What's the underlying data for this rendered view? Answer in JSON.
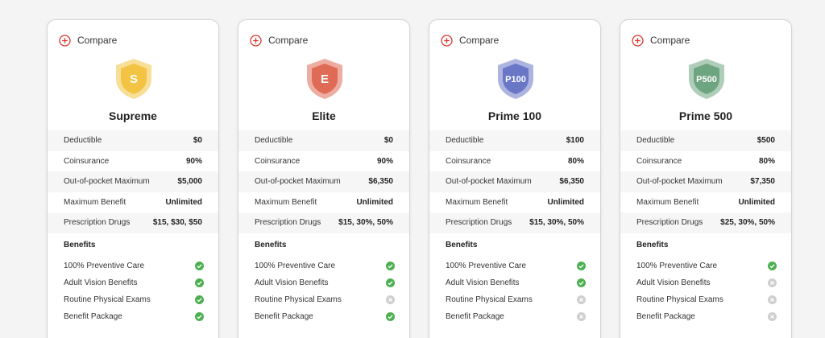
{
  "plans": [
    {
      "compare_label": "Compare",
      "badge": "S",
      "color": "#f3c443",
      "name": "Supreme",
      "rows": [
        {
          "label": "Deductible",
          "value": "$0"
        },
        {
          "label": "Coinsurance",
          "value": "90%"
        },
        {
          "label": "Out-of-pocket Maximum",
          "value": "$5,000"
        },
        {
          "label": "Maximum Benefit",
          "value": "Unlimited"
        },
        {
          "label": "Prescription Drugs",
          "value": "$15, $30, $50"
        }
      ],
      "benefits_title": "Benefits",
      "benefits": [
        {
          "label": "100% Preventive Care",
          "included": true
        },
        {
          "label": "Adult Vision Benefits",
          "included": true
        },
        {
          "label": "Routine Physical Exams",
          "included": true
        },
        {
          "label": "Benefit Package",
          "included": true
        }
      ]
    },
    {
      "compare_label": "Compare",
      "badge": "E",
      "color": "#df6a55",
      "name": "Elite",
      "rows": [
        {
          "label": "Deductible",
          "value": "$0"
        },
        {
          "label": "Coinsurance",
          "value": "90%"
        },
        {
          "label": "Out-of-pocket Maximum",
          "value": "$6,350"
        },
        {
          "label": "Maximum Benefit",
          "value": "Unlimited"
        },
        {
          "label": "Prescription Drugs",
          "value": "$15, 30%, 50%"
        }
      ],
      "benefits_title": "Benefits",
      "benefits": [
        {
          "label": "100% Preventive Care",
          "included": true
        },
        {
          "label": "Adult Vision Benefits",
          "included": true
        },
        {
          "label": "Routine Physical Exams",
          "included": false
        },
        {
          "label": "Benefit Package",
          "included": true
        }
      ]
    },
    {
      "compare_label": "Compare",
      "badge": "P100",
      "color": "#6a77c6",
      "name": "Prime 100",
      "rows": [
        {
          "label": "Deductible",
          "value": "$100"
        },
        {
          "label": "Coinsurance",
          "value": "80%"
        },
        {
          "label": "Out-of-pocket Maximum",
          "value": "$6,350"
        },
        {
          "label": "Maximum Benefit",
          "value": "Unlimited"
        },
        {
          "label": "Prescription Drugs",
          "value": "$15, 30%, 50%"
        }
      ],
      "benefits_title": "Benefits",
      "benefits": [
        {
          "label": "100% Preventive Care",
          "included": true
        },
        {
          "label": "Adult Vision Benefits",
          "included": true
        },
        {
          "label": "Routine Physical Exams",
          "included": false
        },
        {
          "label": "Benefit Package",
          "included": false
        }
      ]
    },
    {
      "compare_label": "Compare",
      "badge": "P500",
      "color": "#6ea581",
      "name": "Prime 500",
      "rows": [
        {
          "label": "Deductible",
          "value": "$500"
        },
        {
          "label": "Coinsurance",
          "value": "80%"
        },
        {
          "label": "Out-of-pocket Maximum",
          "value": "$7,350"
        },
        {
          "label": "Maximum Benefit",
          "value": "Unlimited"
        },
        {
          "label": "Prescription Drugs",
          "value": "$25, 30%, 50%"
        }
      ],
      "benefits_title": "Benefits",
      "benefits": [
        {
          "label": "100% Preventive Care",
          "included": true
        },
        {
          "label": "Adult Vision Benefits",
          "included": false
        },
        {
          "label": "Routine Physical Exams",
          "included": false
        },
        {
          "label": "Benefit Package",
          "included": false
        }
      ]
    }
  ]
}
